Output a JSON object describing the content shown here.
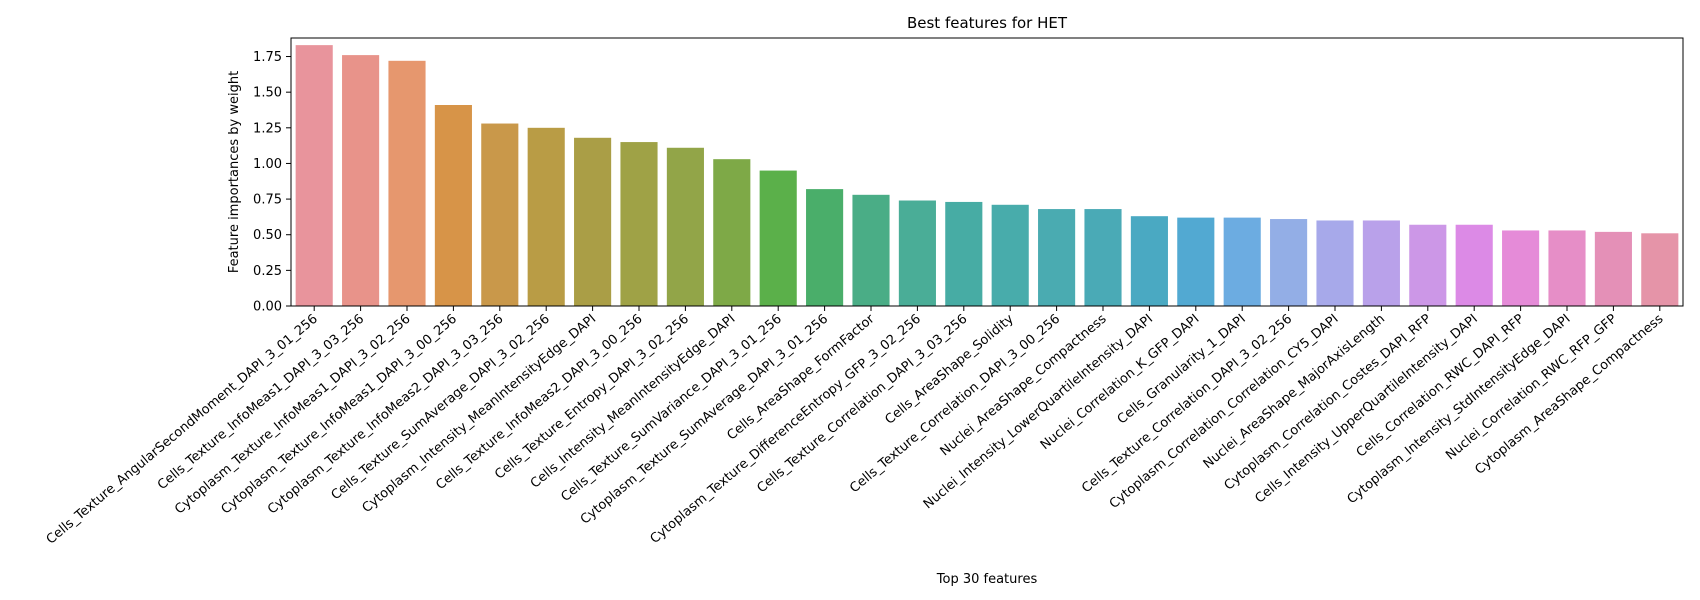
{
  "chart_data": {
    "type": "bar",
    "title": "Best features for HET",
    "xlabel": "Top 30 features",
    "ylabel": "Feature importances by weight",
    "ylim": [
      0,
      1.88
    ],
    "yticks": [
      "0.00",
      "0.25",
      "0.50",
      "0.75",
      "1.00",
      "1.25",
      "1.50",
      "1.75"
    ],
    "grid": false,
    "categories": [
      "Cells_Texture_AngularSecondMoment_DAPI_3_01_256",
      "Cells_Texture_InfoMeas1_DAPI_3_03_256",
      "Cytoplasm_Texture_InfoMeas1_DAPI_3_02_256",
      "Cytoplasm_Texture_InfoMeas1_DAPI_3_00_256",
      "Cytoplasm_Texture_InfoMeas2_DAPI_3_03_256",
      "Cells_Texture_SumAverage_DAPI_3_02_256",
      "Cytoplasm_Intensity_MeanIntensityEdge_DAPI",
      "Cells_Texture_InfoMeas2_DAPI_3_00_256",
      "Cells_Texture_Entropy_DAPI_3_02_256",
      "Cells_Intensity_MeanIntensityEdge_DAPI",
      "Cells_Texture_SumVariance_DAPI_3_01_256",
      "Cytoplasm_Texture_SumAverage_DAPI_3_01_256",
      "Cells_AreaShape_FormFactor",
      "Cytoplasm_Texture_DifferenceEntropy_GFP_3_02_256",
      "Cells_Texture_Correlation_DAPI_3_03_256",
      "Cells_AreaShape_Solidity",
      "Cells_Texture_Correlation_DAPI_3_00_256",
      "Nuclei_AreaShape_Compactness",
      "Nuclei_Intensity_LowerQuartileIntensity_DAPI",
      "Nuclei_Correlation_K_GFP_DAPI",
      "Cells_Granularity_1_DAPI",
      "Cells_Texture_Correlation_DAPI_3_02_256",
      "Cytoplasm_Correlation_Correlation_CY5_DAPI",
      "Nuclei_AreaShape_MajorAxisLength",
      "Cytoplasm_Correlation_Costes_DAPI_RFP",
      "Cells_Intensity_UpperQuartileIntensity_DAPI",
      "Cells_Correlation_RWC_DAPI_RFP",
      "Cytoplasm_Intensity_StdIntensityEdge_DAPI",
      "Nuclei_Correlation_RWC_RFP_GFP",
      "Cytoplasm_AreaShape_Compactness"
    ],
    "values": [
      1.83,
      1.76,
      1.72,
      1.41,
      1.28,
      1.25,
      1.18,
      1.15,
      1.11,
      1.03,
      0.95,
      0.82,
      0.78,
      0.74,
      0.73,
      0.71,
      0.68,
      0.68,
      0.63,
      0.62,
      0.62,
      0.61,
      0.6,
      0.6,
      0.57,
      0.57,
      0.53,
      0.53,
      0.52,
      0.51
    ],
    "colors": [
      "#e8949c",
      "#e8938a",
      "#e6976e",
      "#d79448",
      "#c9984a",
      "#b99c45",
      "#aa9e46",
      "#9fa246",
      "#92a548",
      "#7ea947",
      "#5bb04a",
      "#4aae6a",
      "#4aad86",
      "#4aad97",
      "#47aca4",
      "#48acab",
      "#4aabb1",
      "#4aaab6",
      "#4aa9c2",
      "#52a9d2",
      "#6cace1",
      "#93aee6",
      "#a7a9ea",
      "#b9a1ea",
      "#cc97e7",
      "#dc8ae6",
      "#e58bd8",
      "#e68ec7",
      "#e490b7",
      "#e594a8"
    ]
  }
}
